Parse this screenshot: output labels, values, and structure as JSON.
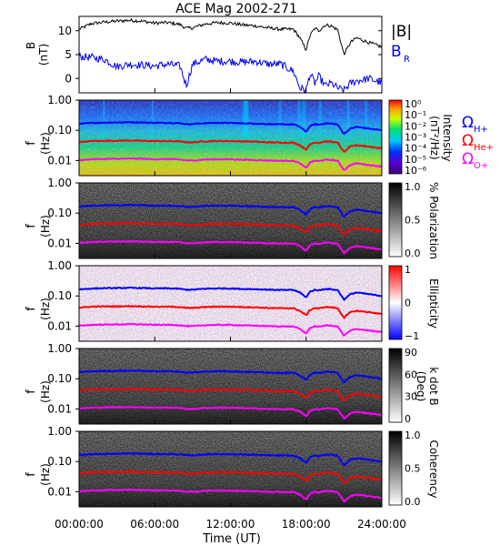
{
  "chart_data": {
    "type": "line",
    "title": "ACE Mag 2002-271",
    "xlabel": "Time (UT)",
    "xticks": [
      "00:00:00",
      "06:00:00",
      "12:00:00",
      "18:00:00",
      "24:00:00"
    ],
    "xlim_hours": [
      0,
      24
    ],
    "panels": [
      {
        "id": "b-field",
        "ylabel": "B",
        "yunit": "(nT)",
        "ylim": [
          -3,
          13
        ],
        "yticks": [
          "0",
          "5",
          "10"
        ],
        "legend": [
          "|B|",
          "B_R"
        ],
        "series": [
          {
            "name": "|B|",
            "color": "#000000",
            "x": [
              0,
              1,
              2,
              3,
              4,
              5,
              6,
              7,
              8,
              8.5,
              9,
              10,
              11,
              12,
              13,
              14,
              15,
              16,
              17,
              17.5,
              18,
              18.3,
              18.7,
              19,
              19.5,
              20,
              20.5,
              21,
              21.5,
              22,
              23,
              24
            ],
            "y": [
              10.3,
              11.5,
              11.8,
              12.0,
              12.2,
              12.0,
              11.6,
              11.7,
              11.3,
              10.5,
              10.6,
              11.4,
              11.7,
              11.6,
              11.2,
              11.0,
              10.6,
              10.3,
              10.3,
              8.5,
              6.0,
              9.0,
              10.5,
              10.0,
              11.2,
              11.0,
              10.2,
              5.0,
              7.5,
              8.5,
              7.5,
              6.6
            ]
          },
          {
            "name": "B_R",
            "color": "#0000ee",
            "x": [
              0,
              1,
              2,
              3,
              4,
              5,
              6,
              7,
              8,
              8.5,
              9,
              10,
              11,
              12,
              13,
              14,
              15,
              16,
              17,
              17.5,
              18,
              18.3,
              18.7,
              19,
              19.5,
              20,
              20.5,
              21,
              21.5,
              22,
              23,
              24
            ],
            "y": [
              4.6,
              4.4,
              4.0,
              2.5,
              3.0,
              2.8,
              2.6,
              3.0,
              2.6,
              -1.5,
              3.0,
              4.0,
              3.6,
              3.6,
              3.4,
              3.6,
              3.0,
              3.0,
              1.5,
              -2.0,
              -2.5,
              1.0,
              -1.0,
              0.5,
              -1.5,
              -1.0,
              -2.0,
              -2.5,
              -1.0,
              -0.5,
              0.0,
              -1.0
            ]
          }
        ]
      },
      {
        "id": "intensity",
        "ylabel": "f",
        "yunit": "(Hz)",
        "yticks": [
          "1.00",
          "0.10",
          "0.01"
        ],
        "colorbar": {
          "label": "Intensity",
          "unit": "(nT²/Hz)",
          "ticks": [
            "10⁰",
            "10⁻¹",
            "10⁻²",
            "10⁻³",
            "10⁻⁴",
            "10⁻⁵",
            "10⁻⁶"
          ]
        }
      },
      {
        "id": "polarization",
        "ylabel": "f",
        "yunit": "(Hz)",
        "yticks": [
          "1.00",
          "0.10",
          "0.01"
        ],
        "colorbar": {
          "label": "% Polarization",
          "unit": "",
          "ticks": [
            "1.0",
            "0.5",
            "0.0"
          ]
        }
      },
      {
        "id": "ellipticity",
        "ylabel": "f",
        "yunit": "(Hz)",
        "yticks": [
          "1.00",
          "0.10",
          "0.01"
        ],
        "colorbar": {
          "label": "Ellipticity",
          "unit": "",
          "ticks": [
            "1",
            "0",
            "−1"
          ]
        }
      },
      {
        "id": "k-dot-b",
        "ylabel": "f",
        "yunit": "(Hz)",
        "yticks": [
          "1.00",
          "0.10",
          "0.01"
        ],
        "colorbar": {
          "label": "k dot B",
          "unit": "(Deg)",
          "ticks": [
            "90",
            "60",
            "30",
            "0"
          ]
        }
      },
      {
        "id": "coherency",
        "ylabel": "f",
        "yunit": "(Hz)",
        "yticks": [
          "1.00",
          "0.10",
          "0.01"
        ],
        "colorbar": {
          "label": "Coherency",
          "unit": "",
          "ticks": [
            "1.0",
            "0.5",
            "0.0"
          ]
        }
      }
    ],
    "gyro_frequencies": {
      "x": [
        0,
        1,
        2,
        3,
        4,
        5,
        6,
        7,
        8,
        8.5,
        9,
        10,
        11,
        12,
        13,
        14,
        15,
        16,
        17,
        17.5,
        18,
        18.3,
        18.7,
        19,
        19.5,
        20,
        20.5,
        21,
        21.5,
        22,
        23,
        24
      ],
      "series": [
        {
          "name": "ΩH+",
          "color": "#0000ff",
          "values": [
            0.165,
            0.175,
            0.18,
            0.182,
            0.185,
            0.182,
            0.177,
            0.178,
            0.172,
            0.16,
            0.161,
            0.173,
            0.177,
            0.176,
            0.17,
            0.167,
            0.161,
            0.157,
            0.157,
            0.13,
            0.09,
            0.137,
            0.16,
            0.152,
            0.17,
            0.167,
            0.155,
            0.076,
            0.114,
            0.13,
            0.114,
            0.1
          ]
        },
        {
          "name": "ΩHe+",
          "color": "#ff0000",
          "values": [
            0.041,
            0.044,
            0.045,
            0.045,
            0.046,
            0.045,
            0.044,
            0.044,
            0.043,
            0.04,
            0.04,
            0.043,
            0.044,
            0.044,
            0.043,
            0.042,
            0.04,
            0.039,
            0.039,
            0.032,
            0.023,
            0.034,
            0.04,
            0.038,
            0.043,
            0.042,
            0.039,
            0.019,
            0.029,
            0.032,
            0.029,
            0.025
          ]
        },
        {
          "name": "ΩO+",
          "color": "#ff00ff",
          "values": [
            0.0103,
            0.011,
            0.0113,
            0.0114,
            0.0116,
            0.0114,
            0.011,
            0.0111,
            0.0108,
            0.01,
            0.01,
            0.0108,
            0.011,
            0.011,
            0.0106,
            0.0104,
            0.01,
            0.0098,
            0.0098,
            0.0081,
            0.0057,
            0.0086,
            0.01,
            0.0095,
            0.0106,
            0.0104,
            0.0097,
            0.0048,
            0.0071,
            0.0081,
            0.0071,
            0.0063
          ]
        }
      ]
    }
  }
}
